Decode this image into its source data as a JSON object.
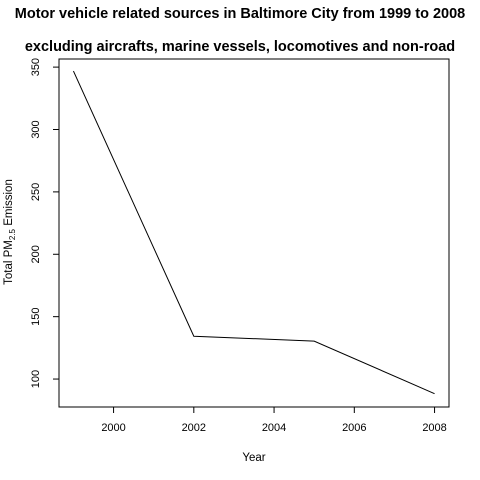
{
  "chart_data": {
    "type": "line",
    "title_line1": "Motor vehicle related sources in Baltimore City from 1999 to 2008",
    "title_line2": "excluding aircrafts, marine vessels, locomotives and non-road",
    "xlabel": "Year",
    "ylabel_prefix": "Total PM",
    "ylabel_subscript": "2.5",
    "ylabel_suffix": " Emission",
    "xlim": [
      1998.64,
      2008.36
    ],
    "ylim": [
      77.6,
      356.5
    ],
    "x_ticks": [
      2000,
      2002,
      2004,
      2006,
      2008
    ],
    "y_ticks": [
      100,
      150,
      200,
      250,
      300,
      350
    ],
    "x": [
      1999,
      2002,
      2005,
      2008
    ],
    "y": [
      346.8,
      134.3,
      130.4,
      88.3
    ],
    "line_color": "#000000",
    "grid": false
  }
}
